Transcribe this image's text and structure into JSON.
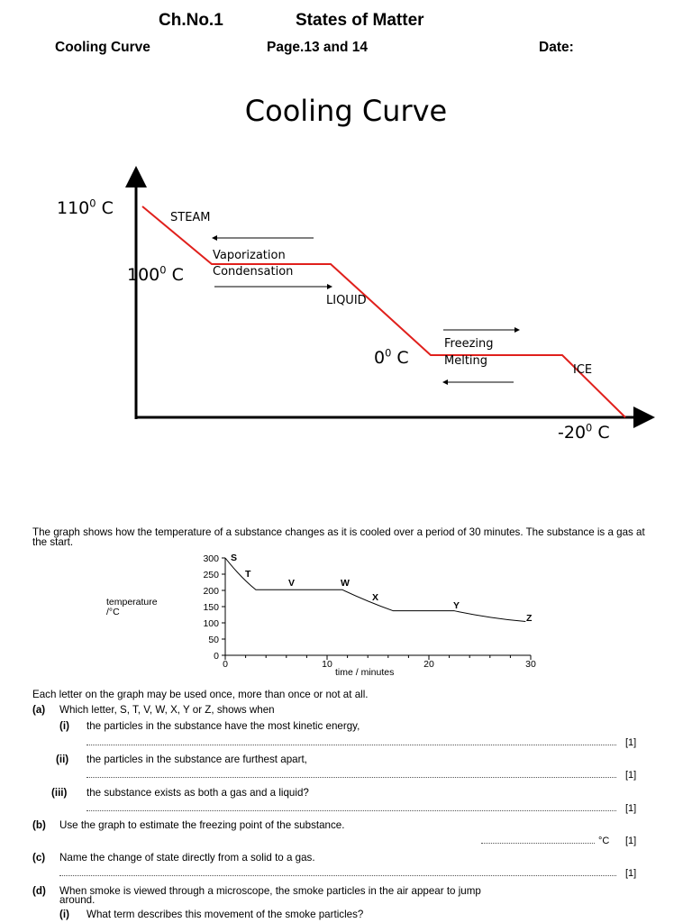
{
  "header": {
    "chapter": "Ch.No.1",
    "topic": "States of Matter",
    "subtitle": "Cooling Curve",
    "pages": "Page.13 and 14",
    "date_label": "Date:"
  },
  "cooling_curve": {
    "title": "Cooling Curve",
    "temp_110": "110",
    "temp_100": "100",
    "temp_0": "0",
    "temp_minus20": "-20",
    "degree_sup": "0",
    "unit": "C",
    "steam": "STEAM",
    "vaporization": "Vaporization",
    "condensation": "Condensation",
    "liquid": "LIQUID",
    "freezing": "Freezing",
    "melting": "Melting",
    "ice": "ICE",
    "line_color": "#e0201c"
  },
  "question": {
    "intro": "The graph shows how the temperature of a substance changes as it is cooled over a period of 30 minutes. The substance is a gas at the start.",
    "graph_ylabel_1": "temperature",
    "graph_ylabel_2": "/°C",
    "graph_xlabel": "time / minutes",
    "y_ticks": [
      "300",
      "250",
      "200",
      "150",
      "100",
      "50",
      "0"
    ],
    "x_ticks": [
      "0",
      "10",
      "20",
      "30"
    ],
    "points": {
      "S": "S",
      "T": "T",
      "V": "V",
      "W": "W",
      "X": "X",
      "Y": "Y",
      "Z": "Z"
    },
    "instruction": "Each letter on the graph may be used once, more than once or not at all.",
    "a_label": "(a)",
    "a_text": "Which letter, S, T, V, W, X, Y or Z, shows when",
    "i_label": "(i)",
    "i_text": "the particles in the substance have the most kinetic energy,",
    "ii_label": "(ii)",
    "ii_text": "the particles in the substance are furthest apart,",
    "iii_label": "(iii)",
    "iii_text": "the substance exists as both a gas and a liquid?",
    "b_label": "(b)",
    "b_text": "Use the graph to estimate the freezing point of the substance.",
    "b_unit": "°C",
    "c_label": "(c)",
    "c_text": "Name the change of state directly from a solid to a gas.",
    "d_label": "(d)",
    "d_text_1": "When smoke is viewed through a microscope, the smoke particles in the air appear to jump",
    "d_text_2": "around.",
    "d_i_label": "(i)",
    "d_i_text": "What term describes this movement of the smoke particles?",
    "mark": "[1]"
  }
}
